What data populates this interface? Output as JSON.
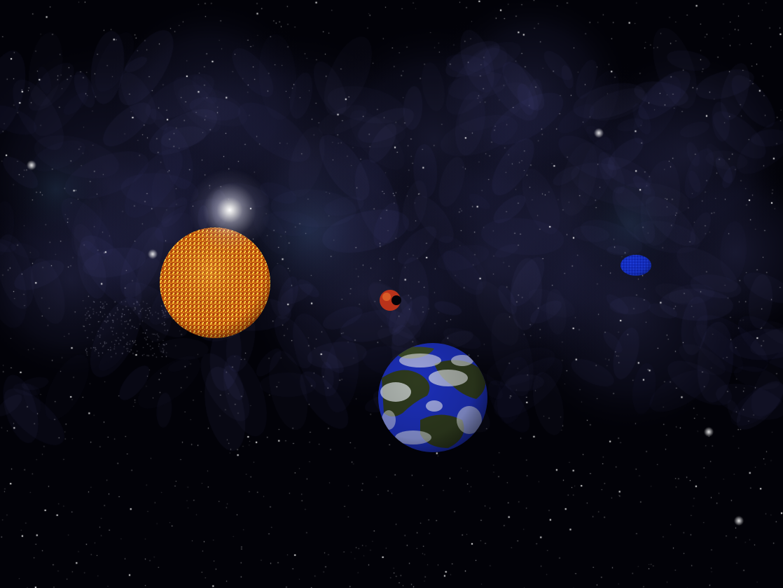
{
  "scene": {
    "colors": {
      "space": "#020208",
      "nebula": "#4a4c8a",
      "nebula_teal": "#2a4a66",
      "star_sun_base": "#c85a10",
      "star_sun_spot": "#ffd23a",
      "earth_ocean": "#1c2fb8",
      "earth_land": "#2e3a1e",
      "earth_cloud": "#e8ecf0",
      "mars_small": "#c0341a",
      "blue_planet": "#1530c8"
    },
    "bodies": [
      "light-flare",
      "sun",
      "small-red-planet",
      "earth-planet",
      "blue-planet"
    ]
  }
}
